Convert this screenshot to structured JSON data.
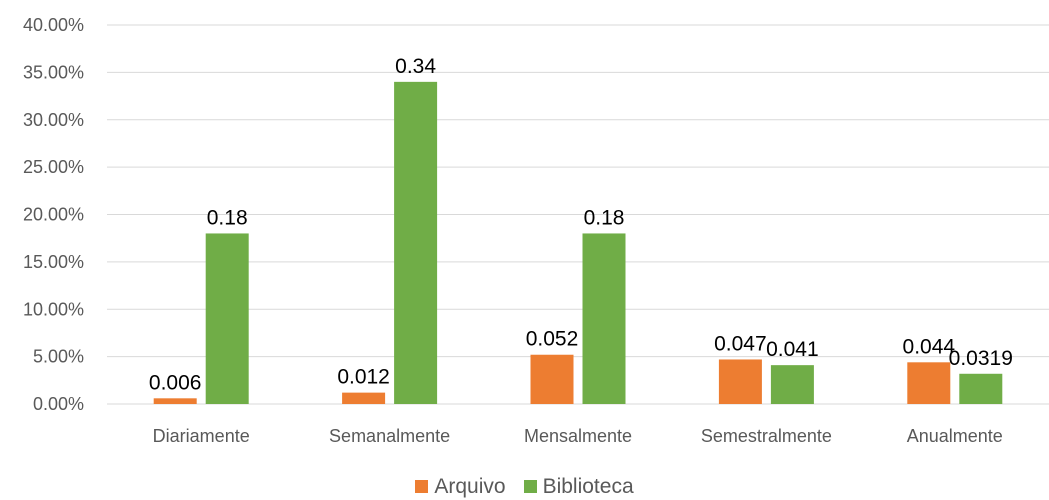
{
  "chart_data": {
    "type": "bar",
    "categories": [
      "Diariamente",
      "Semanalmente",
      "Mensalmente",
      "Semestralmente",
      "Anualmente"
    ],
    "series": [
      {
        "name": "Arquivo",
        "color": "#ED7D31",
        "values": [
          0.006,
          0.012,
          0.052,
          0.047,
          0.044
        ],
        "labels": [
          "0.006",
          "0.012",
          "0.052",
          "0.047",
          "0.044"
        ]
      },
      {
        "name": "Biblioteca",
        "color": "#70AD47",
        "values": [
          0.18,
          0.34,
          0.18,
          0.041,
          0.0319
        ],
        "labels": [
          "0.18",
          "0.34",
          "0.18",
          "0.041",
          "0.0319"
        ]
      }
    ],
    "ylim": [
      0,
      0.4
    ],
    "yticks": [
      "0.00%",
      "5.00%",
      "10.00%",
      "15.00%",
      "20.00%",
      "25.00%",
      "30.00%",
      "35.00%",
      "40.00%"
    ],
    "grid": true,
    "legend_position": "bottom"
  }
}
